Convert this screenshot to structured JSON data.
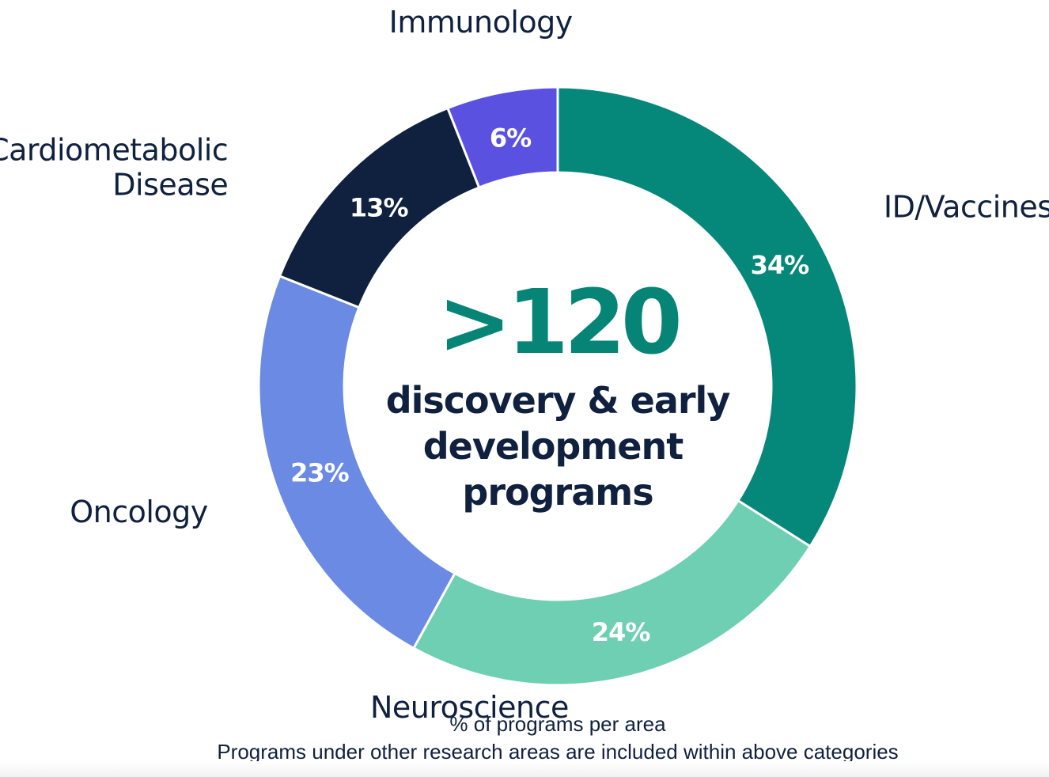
{
  "chart_data": {
    "type": "pie",
    "donut": true,
    "center_value": ">120",
    "center_text": [
      "discovery & early",
      "development",
      "programs"
    ],
    "categories": [
      "ID/Vaccines",
      "Neuroscience",
      "Oncology",
      "Cardiometabolic Disease",
      "Immunology"
    ],
    "category_lines": [
      [
        "ID/Vaccines"
      ],
      [
        "Neuroscience"
      ],
      [
        "Oncology"
      ],
      [
        "Cardiometabolic",
        "Disease"
      ],
      [
        "Immunology"
      ]
    ],
    "values": [
      34,
      24,
      23,
      13,
      6
    ],
    "value_labels": [
      "34%",
      "24%",
      "23%",
      "13%",
      "6%"
    ],
    "colors": [
      "#05877a",
      "#6fcfb2",
      "#6a8ae4",
      "#0f213f",
      "#5b51e0"
    ],
    "center_value_color": "#068577",
    "text_color": "#0f213f",
    "footnotes": [
      "% of programs per area",
      "Programs under other research areas are included within above categories"
    ]
  }
}
